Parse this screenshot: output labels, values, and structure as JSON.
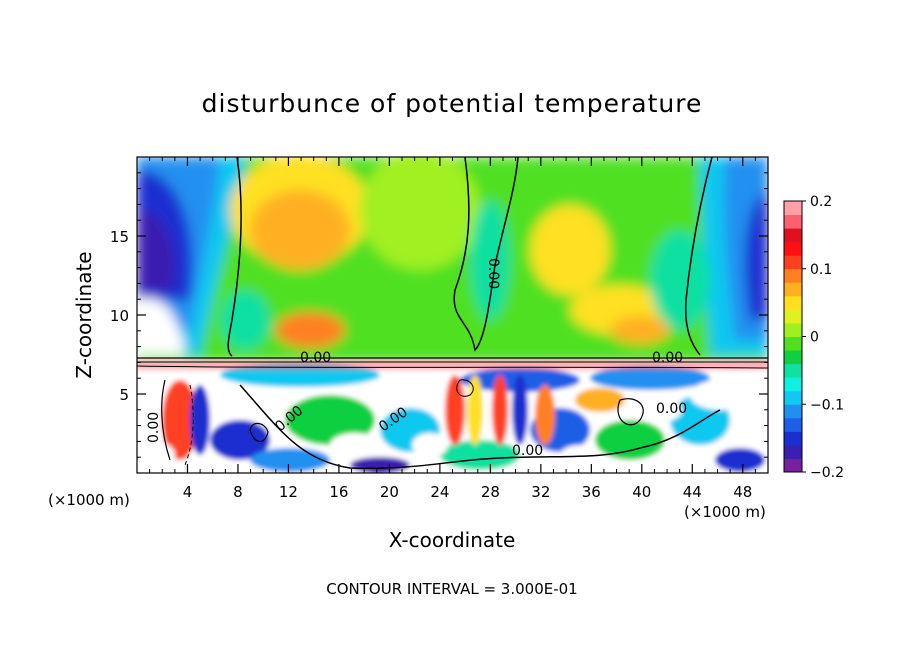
{
  "chart_data": {
    "type": "heatmap",
    "title": "disturbunce of potential temperature",
    "xlabel": "X-coordinate",
    "ylabel": "Z-coordinate",
    "x_unit_left": "(×1000 m)",
    "x_unit_right": "(×1000 m)",
    "footer": "CONTOUR INTERVAL = 3.000E-01",
    "xlim": [
      0,
      50
    ],
    "ylim": [
      0,
      20
    ],
    "x_ticks": [
      "4",
      "8",
      "12",
      "16",
      "20",
      "24",
      "28",
      "32",
      "36",
      "40",
      "44",
      "48"
    ],
    "y_ticks": [
      "5",
      "10",
      "15"
    ],
    "colorbar": {
      "range": [
        -0.2,
        0.2
      ],
      "tick_labels": [
        "0.2",
        "0.1",
        "0",
        "−0.1",
        "−0.2"
      ],
      "colors": [
        "#7a1fa0",
        "#3a1fb0",
        "#1a2fd0",
        "#1f5fe6",
        "#2090f0",
        "#10c8f0",
        "#10f0e0",
        "#10e0a0",
        "#10d040",
        "#50e020",
        "#a0f020",
        "#e0f020",
        "#ffe020",
        "#ffb020",
        "#ff8020",
        "#ff4020",
        "#ff1010",
        "#e01020",
        "#ff6070",
        "#ffa0a8"
      ]
    },
    "contour_labels": [
      "0.00",
      "0.00",
      "0.00",
      "0.00",
      "0.00",
      "0.00",
      "0.00",
      "0.00"
    ]
  }
}
